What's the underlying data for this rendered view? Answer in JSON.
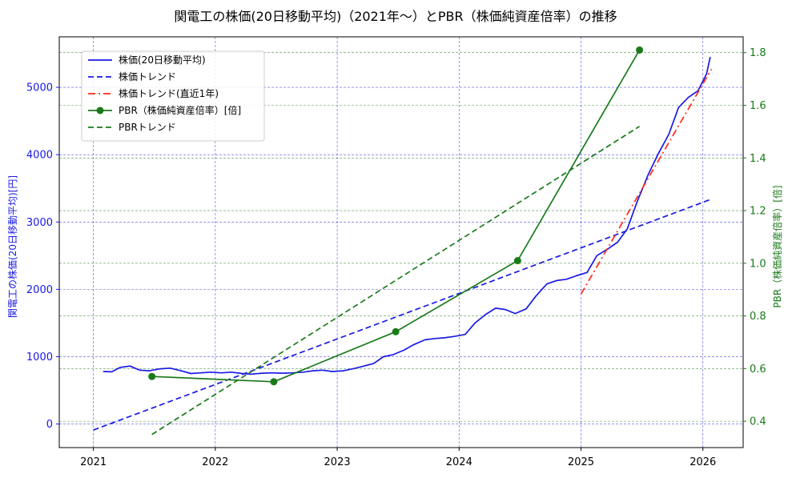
{
  "chart_data": {
    "type": "line",
    "title": "関電工の株価(20日移動平均)（2021年〜）とPBR（株価純資産倍率）の推移",
    "xlabel": "",
    "ylabel_left": "関電工の株価(20日移動平均)[円]",
    "ylabel_right": "PBR（株価純資産倍率）[倍]",
    "x_range": [
      2020.72,
      2026.33
    ],
    "ylim_left": [
      -350,
      5750
    ],
    "ylim_right": [
      0.3,
      1.86
    ],
    "x_ticks": [
      2021,
      2022,
      2023,
      2024,
      2025,
      2026
    ],
    "x_tick_labels": [
      "2021",
      "2022",
      "2023",
      "2024",
      "2025",
      "2026"
    ],
    "y_ticks_left": [
      0,
      1000,
      2000,
      3000,
      4000,
      5000
    ],
    "y_tick_labels_left": [
      "0",
      "1000",
      "2000",
      "3000",
      "4000",
      "5000"
    ],
    "y_ticks_right": [
      0.4,
      0.6,
      0.8,
      1.0,
      1.2,
      1.4,
      1.6,
      1.8
    ],
    "y_tick_labels_right": [
      "0.4",
      "0.6",
      "0.8",
      "1.0",
      "1.2",
      "1.4",
      "1.6",
      "1.8"
    ],
    "grid": true,
    "legend_position": "top-left",
    "colors": {
      "price": "#1a1ae6",
      "price_trend": "#1a1ae6",
      "recent_trend": "#ff2a1a",
      "pbr": "#1a7a1a",
      "pbr_trend": "#1a7a1a",
      "left_axis": "#1a1ae6",
      "right_axis": "#1a7a1a"
    },
    "series": [
      {
        "name": "株価(20日移動平均)",
        "axis": "left",
        "style": "solid",
        "x": [
          2021.08,
          2021.15,
          2021.22,
          2021.3,
          2021.38,
          2021.46,
          2021.55,
          2021.63,
          2021.72,
          2021.8,
          2021.88,
          2021.96,
          2022.05,
          2022.13,
          2022.22,
          2022.3,
          2022.38,
          2022.46,
          2022.55,
          2022.63,
          2022.72,
          2022.8,
          2022.88,
          2022.96,
          2023.05,
          2023.13,
          2023.22,
          2023.3,
          2023.38,
          2023.46,
          2023.55,
          2023.63,
          2023.72,
          2023.8,
          2023.88,
          2023.96,
          2024.05,
          2024.13,
          2024.22,
          2024.3,
          2024.38,
          2024.46,
          2024.55,
          2024.63,
          2024.72,
          2024.8,
          2024.88,
          2024.96,
          2025.05,
          2025.13,
          2025.22,
          2025.3,
          2025.38,
          2025.46,
          2025.55,
          2025.63,
          2025.72,
          2025.8,
          2025.88,
          2025.96,
          2026.03,
          2026.06
        ],
        "values": [
          780,
          775,
          840,
          860,
          800,
          790,
          820,
          830,
          790,
          750,
          760,
          770,
          760,
          770,
          750,
          740,
          755,
          760,
          755,
          760,
          770,
          790,
          800,
          780,
          790,
          820,
          860,
          900,
          1000,
          1030,
          1100,
          1180,
          1250,
          1270,
          1280,
          1300,
          1330,
          1500,
          1630,
          1720,
          1700,
          1640,
          1710,
          1900,
          2080,
          2130,
          2150,
          2200,
          2250,
          2500,
          2600,
          2700,
          2900,
          3300,
          3700,
          4000,
          4300,
          4700,
          4850,
          4950,
          5200,
          5450
        ]
      },
      {
        "name": "株価トレンド",
        "axis": "left",
        "style": "dashed",
        "x": [
          2021.0,
          2026.07
        ],
        "values": [
          -90,
          3340
        ]
      },
      {
        "name": "株価トレンド(直近1年)",
        "axis": "left",
        "style": "dashdot",
        "x": [
          2025.0,
          2026.07
        ],
        "values": [
          1930,
          5270
        ]
      },
      {
        "name": "PBR（株価純資産倍率）[倍]",
        "axis": "right",
        "style": "solid-markers",
        "x": [
          2021.48,
          2022.48,
          2023.48,
          2024.48,
          2025.48
        ],
        "values": [
          0.57,
          0.55,
          0.74,
          1.01,
          1.81
        ]
      },
      {
        "name": "PBRトレンド",
        "axis": "right",
        "style": "dashed",
        "x": [
          2021.48,
          2025.48
        ],
        "values": [
          0.35,
          1.52
        ]
      }
    ],
    "legend": [
      "株価(20日移動平均)",
      "株価トレンド",
      "株価トレンド(直近1年)",
      "PBR（株価純資産倍率）[倍]",
      "PBRトレンド"
    ]
  }
}
